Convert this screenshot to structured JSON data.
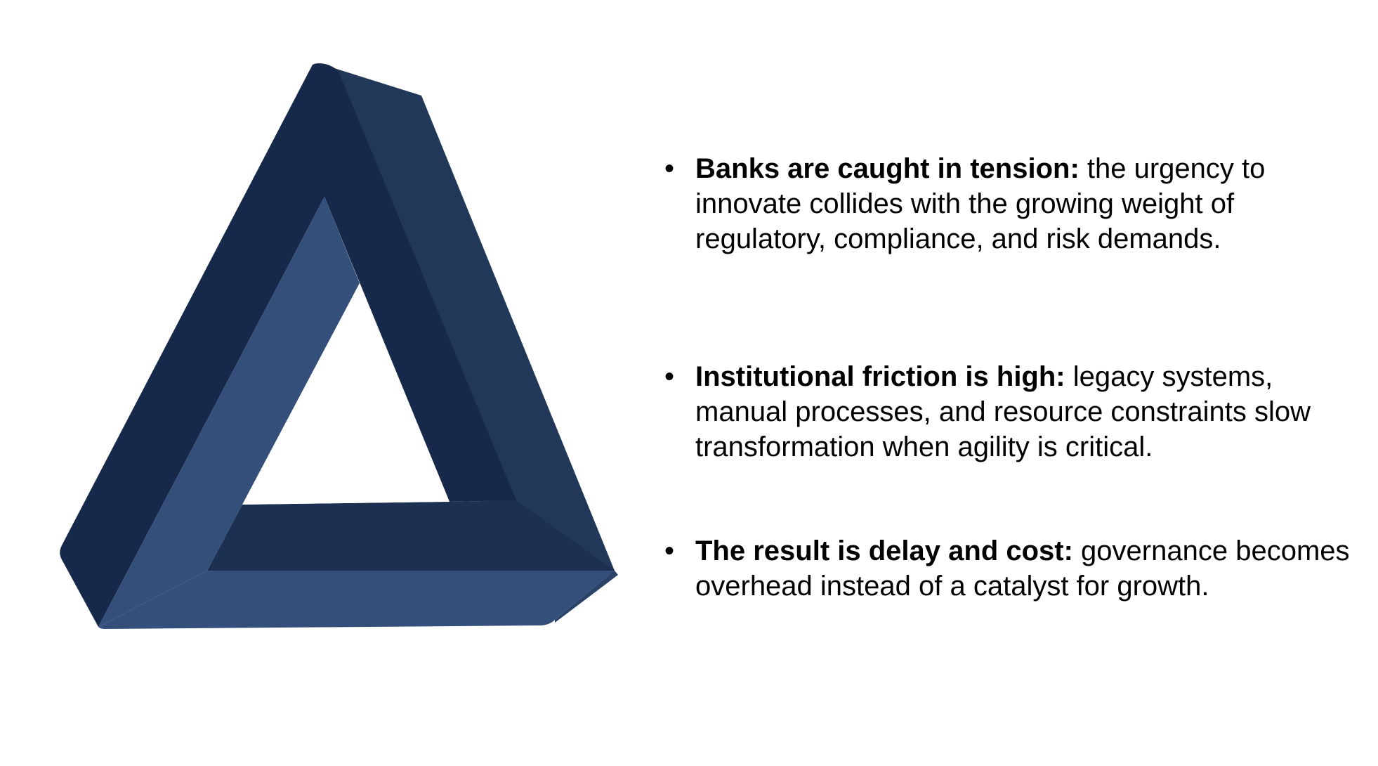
{
  "figure": {
    "name": "impossible-triangle",
    "colors": {
      "dark_face": "#17294a",
      "mid_face": "#213858",
      "light_face": "#344f79",
      "inner_dark": "#1c3151"
    }
  },
  "bullets": [
    {
      "marker": "•",
      "lead": "Banks are caught in tension:",
      "text": " the urgency to innovate collides with the growing weight of regulatory, compliance, and risk demands."
    },
    {
      "marker": "•",
      "lead": "Institutional friction is high:",
      "text": " legacy systems, manual processes, and resource constraints slow transformation when agility is critical."
    },
    {
      "marker": "•",
      "lead": "The result is delay and cost:",
      "text": " governance becomes overhead instead of a catalyst for growth."
    }
  ]
}
